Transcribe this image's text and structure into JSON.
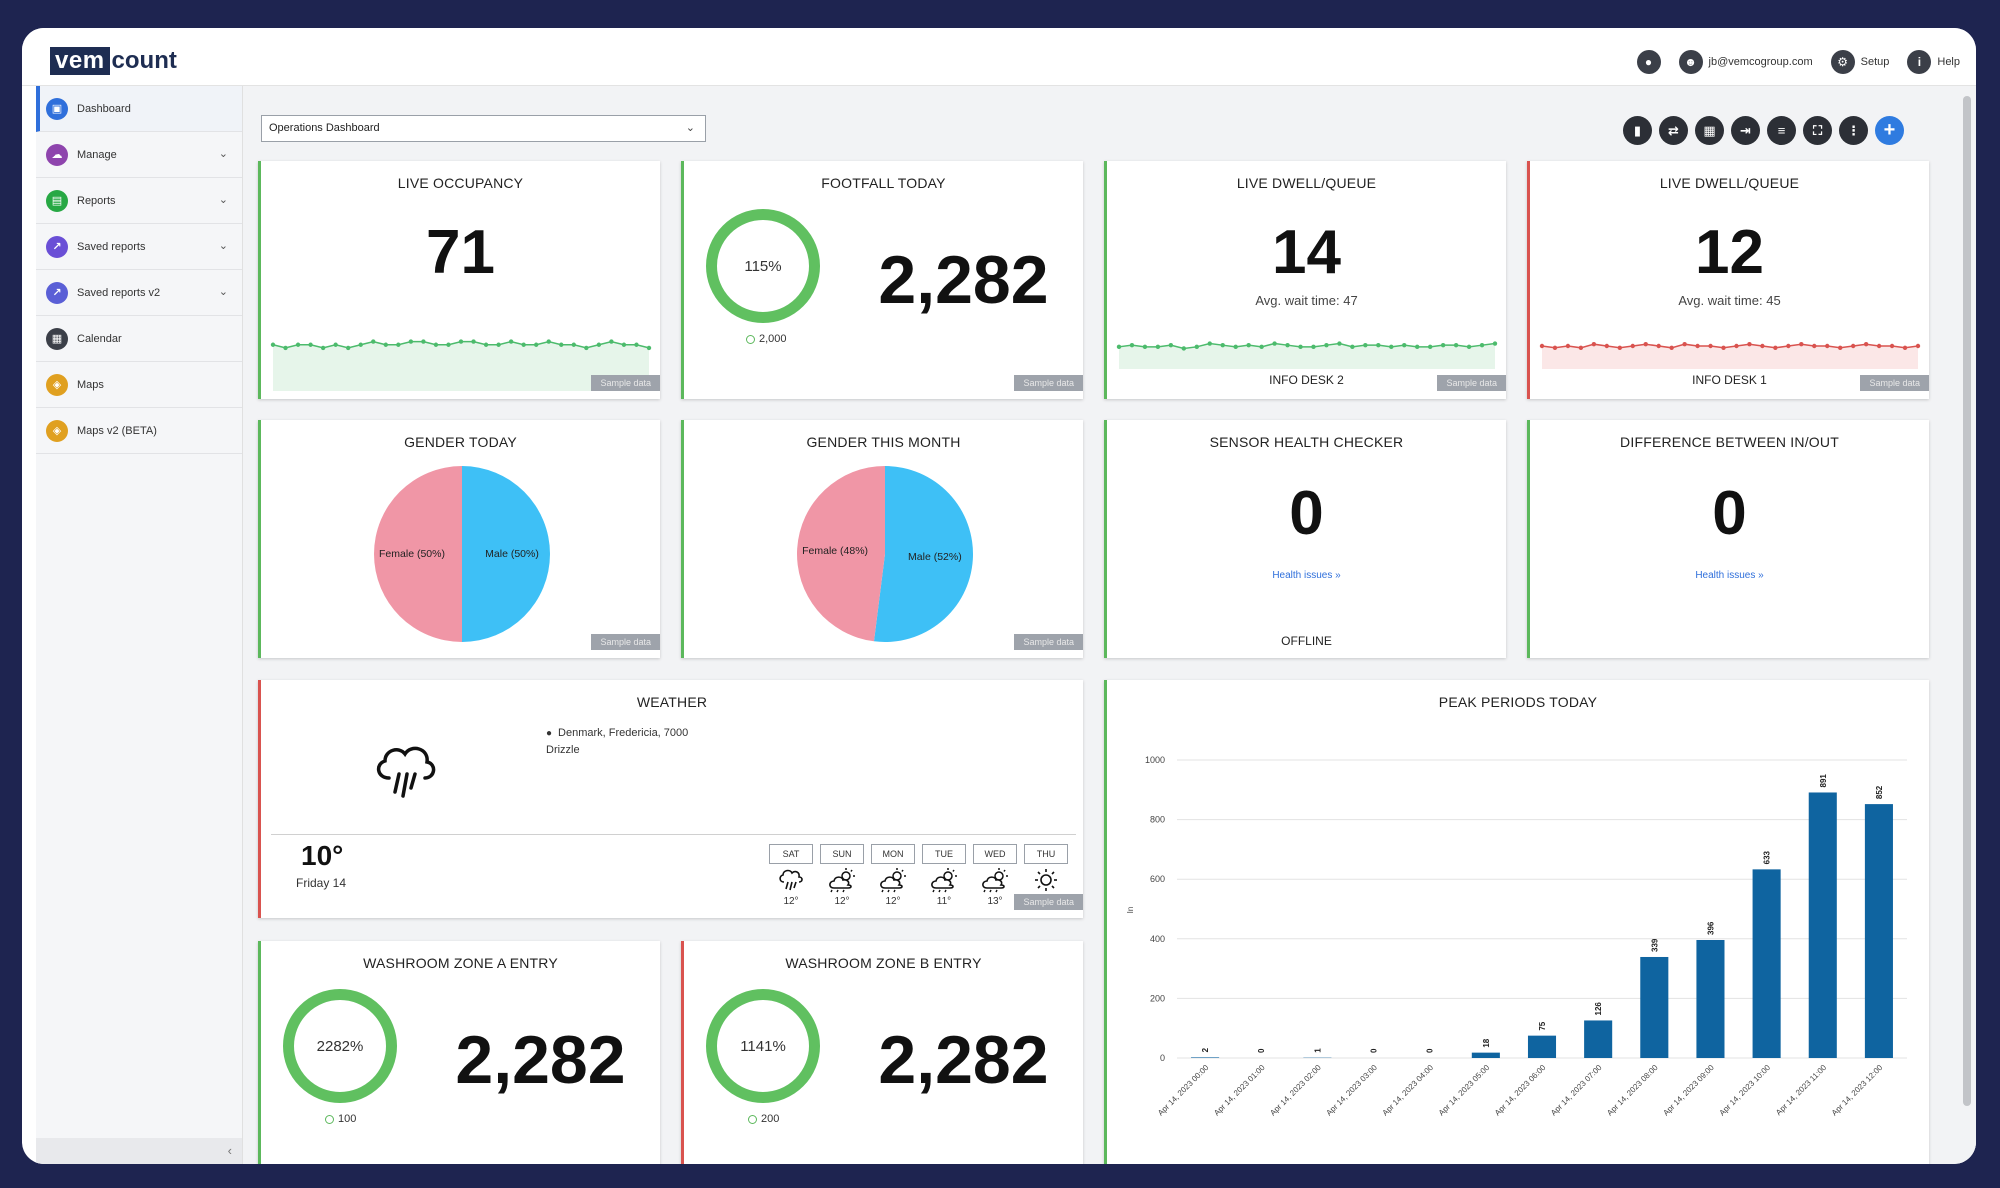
{
  "app": {
    "logo_left": "vem",
    "logo_right": "count"
  },
  "topnav": {
    "user_email": "jb@vemcogroup.com",
    "setup_label": "Setup",
    "help_label": "Help"
  },
  "sidebar": {
    "items": [
      {
        "label": "Dashboard",
        "color": "#2f6fdb",
        "icon": "dashboard-icon"
      },
      {
        "label": "Manage",
        "color": "#8e44ad",
        "icon": "cloud-icon"
      },
      {
        "label": "Reports",
        "color": "#27a844",
        "icon": "chart-icon"
      },
      {
        "label": "Saved reports",
        "color": "#6a4fd6",
        "icon": "export-icon"
      },
      {
        "label": "Saved reports v2",
        "color": "#5a5fd6",
        "icon": "export-icon"
      },
      {
        "label": "Calendar",
        "color": "#3b3f48",
        "icon": "calendar-icon"
      },
      {
        "label": "Maps",
        "color": "#e0a020",
        "icon": "map-icon"
      },
      {
        "label": "Maps v2 (BETA)",
        "color": "#e0a020",
        "icon": "map-icon"
      }
    ]
  },
  "dashboard_select": {
    "value": "Operations Dashboard"
  },
  "sample_label": "Sample data",
  "cards": {
    "live_occupancy": {
      "title": "LIVE OCCUPANCY",
      "value": "71",
      "sparkline": [
        12,
        11,
        12,
        12,
        11,
        12,
        11,
        12,
        13,
        12,
        12,
        13,
        13,
        12,
        12,
        13,
        13,
        12,
        12,
        13,
        12,
        12,
        13,
        12,
        12,
        11,
        12,
        13,
        12,
        12,
        11
      ]
    },
    "footfall_today": {
      "title": "FOOTFALL TODAY",
      "value": "2,282",
      "ring_label": "115%",
      "target": "2,000"
    },
    "dwell_1": {
      "title": "LIVE DWELL/QUEUE",
      "value": "14",
      "wait_label": "Avg. wait time: 47",
      "location": "INFO DESK 2",
      "sparkline": [
        13,
        14,
        13,
        13,
        14,
        12,
        13,
        15,
        14,
        13,
        14,
        13,
        15,
        14,
        13,
        13,
        14,
        15,
        13,
        14,
        14,
        13,
        14,
        13,
        13,
        14,
        14,
        13,
        14,
        15
      ]
    },
    "dwell_2": {
      "title": "LIVE DWELL/QUEUE",
      "value": "12",
      "wait_label": "Avg. wait time: 45",
      "location": "INFO DESK 1",
      "sparkline": [
        14,
        13,
        14,
        13,
        15,
        14,
        13,
        14,
        15,
        14,
        13,
        15,
        14,
        14,
        13,
        14,
        15,
        14,
        13,
        14,
        15,
        14,
        14,
        13,
        14,
        15,
        14,
        14,
        13,
        14
      ]
    },
    "gender_today": {
      "title": "GENDER TODAY",
      "female_label": "Female (50%)",
      "male_label": "Male (50%)",
      "female_pct": 50
    },
    "gender_month": {
      "title": "GENDER THIS MONTH",
      "female_label": "Female (48%)",
      "male_label": "Male (52%)",
      "female_pct": 48
    },
    "sensor_health": {
      "title": "SENSOR HEALTH CHECKER",
      "value": "0",
      "link": "Health issues »",
      "status": "OFFLINE"
    },
    "diff_inout": {
      "title": "DIFFERENCE BETWEEN IN/OUT",
      "value": "0",
      "link": "Health issues »"
    },
    "weather": {
      "title": "WEATHER",
      "location": "Denmark, Fredericia, 7000",
      "condition": "Drizzle",
      "temp": "10°",
      "date": "Friday 14",
      "forecast": [
        {
          "day": "SAT",
          "temp": "12°",
          "icon": "rain-icon"
        },
        {
          "day": "SUN",
          "temp": "12°",
          "icon": "partly-cloudy-icon"
        },
        {
          "day": "MON",
          "temp": "12°",
          "icon": "partly-cloudy-icon"
        },
        {
          "day": "TUE",
          "temp": "11°",
          "icon": "partly-cloudy-icon"
        },
        {
          "day": "WED",
          "temp": "13°",
          "icon": "partly-cloudy-icon"
        },
        {
          "day": "THU",
          "temp": "",
          "icon": "sun-icon"
        }
      ]
    },
    "washroom_a": {
      "title": "WASHROOM ZONE A ENTRY",
      "value": "2,282",
      "ring_label": "2282%",
      "target": "100"
    },
    "washroom_b": {
      "title": "WASHROOM ZONE B ENTRY",
      "value": "2,282",
      "ring_label": "1141%",
      "target": "200"
    },
    "peak_periods": {
      "title": "PEAK PERIODS TODAY"
    }
  },
  "chart_data": {
    "type": "bar",
    "title": "PEAK PERIODS TODAY",
    "xlabel": "",
    "ylabel": "In",
    "ylim": [
      0,
      1000
    ],
    "yticks": [
      0,
      200,
      400,
      600,
      800,
      1000
    ],
    "categories": [
      "Apr 14, 2023 00:00",
      "Apr 14, 2023 01:00",
      "Apr 14, 2023 02:00",
      "Apr 14, 2023 03:00",
      "Apr 14, 2023 04:00",
      "Apr 14, 2023 05:00",
      "Apr 14, 2023 06:00",
      "Apr 14, 2023 07:00",
      "Apr 14, 2023 08:00",
      "Apr 14, 2023 09:00",
      "Apr 14, 2023 10:00",
      "Apr 14, 2023 11:00",
      "Apr 14, 2023 12:00"
    ],
    "values": [
      2,
      0,
      1,
      0,
      0,
      18,
      75,
      126,
      339,
      396,
      633,
      891,
      852
    ],
    "color": "#0f64a0"
  }
}
